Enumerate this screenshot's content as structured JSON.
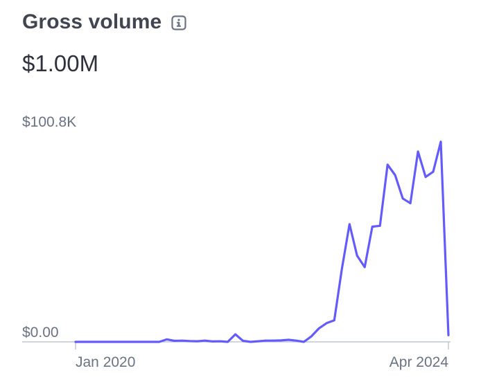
{
  "header": {
    "title": "Gross volume",
    "info_icon": "info-icon"
  },
  "summary": {
    "total": "$1.00M"
  },
  "colors": {
    "line": "#635bff",
    "axis": "#c0c8d2",
    "text": "#414552",
    "muted": "#6a7383"
  },
  "chart_data": {
    "type": "line",
    "title": "",
    "xlabel": "",
    "ylabel": "",
    "ylim": [
      0,
      100800
    ],
    "y_tick_labels": [
      "$0.00",
      "$100.8K"
    ],
    "x_tick_labels": [
      "Jan 2020",
      "Apr 2024"
    ],
    "grid": false,
    "series": [
      {
        "values": [
          0,
          0,
          0,
          0,
          0,
          0,
          0,
          0,
          0,
          0,
          0,
          0,
          1200,
          500,
          600,
          400,
          300,
          600,
          200,
          300,
          0,
          3600,
          500,
          0,
          300,
          600,
          600,
          700,
          1000,
          600,
          0,
          2700,
          6500,
          9000,
          10300,
          35000,
          56400,
          41300,
          35800,
          55200,
          55600,
          84900,
          79900,
          68700,
          66400,
          91200,
          79000,
          81500,
          95900,
          3200
        ]
      }
    ]
  }
}
